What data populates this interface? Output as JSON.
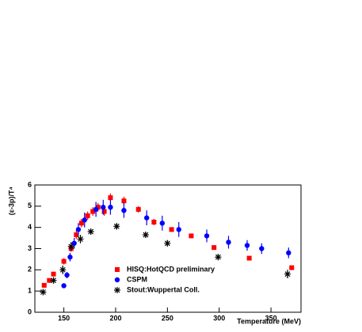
{
  "chart_data": {
    "type": "scatter",
    "x_label": "Temperature (MeV)",
    "y_label": "(ε-3p)/T⁴",
    "xlim": [
      122,
      379
    ],
    "ylim": [
      0,
      6
    ],
    "xticks": [
      150,
      200,
      250,
      300,
      350
    ],
    "yticks": [
      0,
      1,
      2,
      3,
      4,
      5,
      6
    ],
    "series": [
      {
        "name": "HISQ:HotQCD preliminary",
        "color": "#ff0000",
        "marker": "square",
        "x": [
          131,
          136,
          140,
          150,
          157,
          162,
          167,
          173,
          178,
          183,
          189,
          195,
          208,
          222,
          237,
          254,
          273,
          295,
          329,
          370
        ],
        "values": [
          1.27,
          1.5,
          1.8,
          2.4,
          3.0,
          3.65,
          4.2,
          4.55,
          4.75,
          4.95,
          4.75,
          5.4,
          5.25,
          4.85,
          4.25,
          3.9,
          3.6,
          3.05,
          2.55,
          2.1
        ],
        "errors": [
          0.1,
          0.1,
          0.1,
          0.15,
          0.15,
          0.2,
          0.2,
          0.2,
          0.2,
          0.2,
          0.2,
          0.2,
          0.2,
          0.15,
          0.15,
          0.1,
          0.1,
          0.1,
          0.1,
          0.1
        ]
      },
      {
        "name": "CSPM",
        "color": "#0000ff",
        "marker": "circle",
        "x": [
          150,
          153,
          156,
          160,
          164,
          170,
          181,
          188,
          195,
          208,
          230,
          245,
          261,
          288,
          309,
          327,
          341,
          367
        ],
        "values": [
          1.25,
          1.75,
          2.6,
          3.25,
          3.9,
          4.35,
          4.85,
          4.95,
          4.95,
          4.8,
          4.45,
          4.2,
          3.9,
          3.6,
          3.3,
          3.15,
          3.0,
          2.8
        ],
        "errors": [
          0.1,
          0.15,
          0.2,
          0.25,
          0.3,
          0.35,
          0.35,
          0.35,
          0.35,
          0.35,
          0.35,
          0.35,
          0.35,
          0.3,
          0.3,
          0.25,
          0.25,
          0.25
        ]
      },
      {
        "name": "Stout:Wuppertal Coll.",
        "color": "#000000",
        "marker": "star",
        "x": [
          130,
          140,
          149,
          157,
          166,
          176,
          201,
          229,
          250,
          299,
          366
        ],
        "values": [
          0.95,
          1.5,
          2.0,
          3.1,
          3.45,
          3.8,
          4.05,
          3.65,
          3.25,
          2.6,
          1.8
        ],
        "errors": [
          0.15,
          0.15,
          0.2,
          0.2,
          0.2,
          0.15,
          0.15,
          0.15,
          0.15,
          0.15,
          0.2
        ]
      }
    ]
  }
}
